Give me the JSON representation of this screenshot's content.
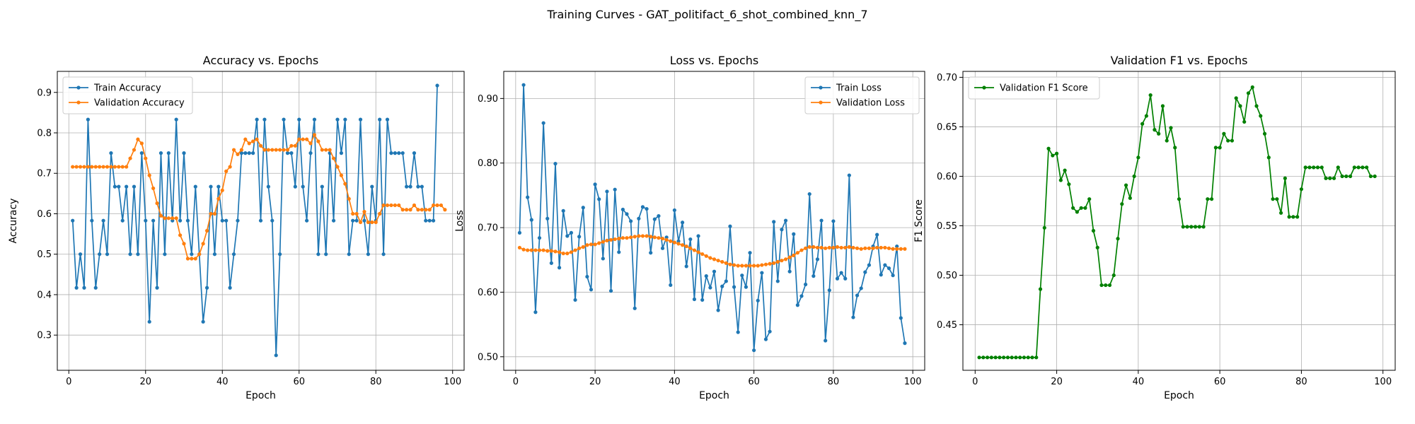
{
  "suptitle": "Training Curves - GAT_politifact_6_shot_combined_knn_7",
  "colors": {
    "train": "#1f77b4",
    "validation": "#ff7f0e",
    "f1": "#008000"
  },
  "chart_data": [
    {
      "type": "line",
      "title": "Accuracy vs. Epochs",
      "xlabel": "Epoch",
      "ylabel": "Accuracy",
      "xlim": [
        -3,
        103
      ],
      "ylim": [
        0.213,
        0.952
      ],
      "xticks": [
        0,
        20,
        40,
        60,
        80,
        100
      ],
      "yticks": [
        0.3,
        0.4,
        0.5,
        0.6,
        0.7,
        0.8,
        0.9
      ],
      "grid": true,
      "legend": "upper left",
      "x_start": 1,
      "series": [
        {
          "name": "Train Accuracy",
          "color": "#1f77b4",
          "values": [
            0.583,
            0.417,
            0.5,
            0.417,
            0.833,
            0.583,
            0.417,
            0.5,
            0.583,
            0.5,
            0.75,
            0.667,
            0.667,
            0.583,
            0.667,
            0.5,
            0.667,
            0.5,
            0.75,
            0.583,
            0.333,
            0.583,
            0.417,
            0.75,
            0.5,
            0.75,
            0.583,
            0.833,
            0.583,
            0.75,
            0.583,
            0.5,
            0.667,
            0.5,
            0.333,
            0.417,
            0.667,
            0.5,
            0.667,
            0.583,
            0.583,
            0.417,
            0.5,
            0.583,
            0.75,
            0.75,
            0.75,
            0.75,
            0.833,
            0.583,
            0.833,
            0.667,
            0.583,
            0.25,
            0.5,
            0.833,
            0.75,
            0.75,
            0.667,
            0.833,
            0.667,
            0.583,
            0.75,
            0.833,
            0.5,
            0.667,
            0.5,
            0.75,
            0.583,
            0.833,
            0.75,
            0.833,
            0.5,
            0.583,
            0.583,
            0.833,
            0.583,
            0.5,
            0.667,
            0.583,
            0.833,
            0.5,
            0.833,
            0.75,
            0.75,
            0.75,
            0.75,
            0.667,
            0.667,
            0.75,
            0.667,
            0.667,
            0.583,
            0.583,
            0.583,
            0.917
          ]
        },
        {
          "name": "Validation Accuracy",
          "color": "#ff7f0e",
          "values": [
            0.716,
            0.716,
            0.716,
            0.716,
            0.716,
            0.716,
            0.716,
            0.716,
            0.716,
            0.716,
            0.716,
            0.716,
            0.716,
            0.716,
            0.716,
            0.737,
            0.758,
            0.784,
            0.774,
            0.737,
            0.695,
            0.663,
            0.626,
            0.595,
            0.589,
            0.589,
            0.589,
            0.589,
            0.547,
            0.526,
            0.489,
            0.489,
            0.489,
            0.5,
            0.526,
            0.558,
            0.6,
            0.6,
            0.637,
            0.658,
            0.705,
            0.716,
            0.758,
            0.747,
            0.758,
            0.784,
            0.774,
            0.779,
            0.784,
            0.768,
            0.758,
            0.758,
            0.758,
            0.758,
            0.758,
            0.758,
            0.758,
            0.768,
            0.768,
            0.784,
            0.784,
            0.784,
            0.774,
            0.795,
            0.779,
            0.758,
            0.758,
            0.758,
            0.737,
            0.716,
            0.695,
            0.674,
            0.637,
            0.6,
            0.6,
            0.579,
            0.605,
            0.579,
            0.579,
            0.579,
            0.6,
            0.621,
            0.621,
            0.621,
            0.621,
            0.621,
            0.61,
            0.61,
            0.61,
            0.621,
            0.61,
            0.61,
            0.61,
            0.61,
            0.621,
            0.621,
            0.621,
            0.61
          ]
        }
      ]
    },
    {
      "type": "line",
      "title": "Loss vs. Epochs",
      "xlabel": "Epoch",
      "ylabel": "Loss",
      "xlim": [
        -3,
        103
      ],
      "ylim": [
        0.479,
        0.942
      ],
      "xticks": [
        0,
        20,
        40,
        60,
        80,
        100
      ],
      "yticks": [
        0.5,
        0.6,
        0.7,
        0.8,
        0.9
      ],
      "grid": true,
      "legend": "upper right",
      "x_start": 1,
      "series": [
        {
          "name": "Train Loss",
          "color": "#1f77b4",
          "values": [
            0.692,
            0.921,
            0.747,
            0.712,
            0.569,
            0.684,
            0.862,
            0.714,
            0.645,
            0.799,
            0.638,
            0.726,
            0.687,
            0.692,
            0.588,
            0.686,
            0.731,
            0.624,
            0.604,
            0.767,
            0.744,
            0.652,
            0.756,
            0.602,
            0.759,
            0.662,
            0.728,
            0.721,
            0.71,
            0.575,
            0.714,
            0.732,
            0.729,
            0.661,
            0.713,
            0.718,
            0.668,
            0.685,
            0.611,
            0.727,
            0.679,
            0.708,
            0.64,
            0.682,
            0.589,
            0.687,
            0.588,
            0.625,
            0.607,
            0.632,
            0.572,
            0.609,
            0.617,
            0.702,
            0.608,
            0.538,
            0.626,
            0.608,
            0.661,
            0.51,
            0.587,
            0.63,
            0.527,
            0.539,
            0.709,
            0.617,
            0.697,
            0.711,
            0.632,
            0.69,
            0.58,
            0.594,
            0.612,
            0.752,
            0.625,
            0.651,
            0.711,
            0.525,
            0.603,
            0.71,
            0.621,
            0.63,
            0.621,
            0.781,
            0.561,
            0.595,
            0.606,
            0.631,
            0.642,
            0.671,
            0.689,
            0.627,
            0.642,
            0.637,
            0.626,
            0.671,
            0.56,
            0.521
          ]
        },
        {
          "name": "Validation Loss",
          "color": "#ff7f0e",
          "values": [
            0.669,
            0.666,
            0.665,
            0.665,
            0.665,
            0.665,
            0.665,
            0.664,
            0.664,
            0.663,
            0.662,
            0.66,
            0.66,
            0.662,
            0.665,
            0.668,
            0.67,
            0.673,
            0.674,
            0.674,
            0.676,
            0.678,
            0.68,
            0.681,
            0.682,
            0.683,
            0.684,
            0.684,
            0.685,
            0.686,
            0.687,
            0.687,
            0.687,
            0.686,
            0.685,
            0.684,
            0.683,
            0.681,
            0.679,
            0.677,
            0.675,
            0.673,
            0.671,
            0.668,
            0.665,
            0.662,
            0.659,
            0.656,
            0.653,
            0.651,
            0.649,
            0.647,
            0.645,
            0.643,
            0.642,
            0.641,
            0.641,
            0.641,
            0.641,
            0.641,
            0.641,
            0.642,
            0.643,
            0.644,
            0.645,
            0.647,
            0.649,
            0.651,
            0.654,
            0.657,
            0.661,
            0.665,
            0.668,
            0.67,
            0.67,
            0.669,
            0.669,
            0.668,
            0.669,
            0.669,
            0.67,
            0.669,
            0.669,
            0.67,
            0.669,
            0.668,
            0.667,
            0.668,
            0.668,
            0.668,
            0.669,
            0.669,
            0.669,
            0.668,
            0.667,
            0.667,
            0.667,
            0.667
          ]
        }
      ]
    },
    {
      "type": "line",
      "title": "Validation F1 vs. Epochs",
      "xlabel": "Epoch",
      "ylabel": "F1 Score",
      "xlim": [
        -3,
        103
      ],
      "ylim": [
        0.404,
        0.706
      ],
      "xticks": [
        0,
        20,
        40,
        60,
        80,
        100
      ],
      "yticks": [
        0.45,
        0.5,
        0.55,
        0.6,
        0.65,
        0.7
      ],
      "grid": true,
      "legend": "upper left",
      "x_start": 1,
      "series": [
        {
          "name": "Validation F1 Score",
          "color": "#008000",
          "values": [
            0.417,
            0.417,
            0.417,
            0.417,
            0.417,
            0.417,
            0.417,
            0.417,
            0.417,
            0.417,
            0.417,
            0.417,
            0.417,
            0.417,
            0.417,
            0.486,
            0.548,
            0.628,
            0.621,
            0.623,
            0.596,
            0.606,
            0.592,
            0.568,
            0.564,
            0.568,
            0.568,
            0.577,
            0.545,
            0.528,
            0.49,
            0.49,
            0.49,
            0.5,
            0.537,
            0.572,
            0.591,
            0.578,
            0.6,
            0.619,
            0.653,
            0.661,
            0.682,
            0.647,
            0.643,
            0.671,
            0.636,
            0.649,
            0.629,
            0.577,
            0.549,
            0.549,
            0.549,
            0.549,
            0.549,
            0.549,
            0.577,
            0.577,
            0.629,
            0.629,
            0.643,
            0.636,
            0.636,
            0.679,
            0.671,
            0.655,
            0.684,
            0.69,
            0.671,
            0.661,
            0.643,
            0.619,
            0.577,
            0.577,
            0.563,
            0.598,
            0.559,
            0.559,
            0.559,
            0.587,
            0.609,
            0.609,
            0.609,
            0.609,
            0.609,
            0.598,
            0.598,
            0.598,
            0.609,
            0.6,
            0.6,
            0.6,
            0.609,
            0.609,
            0.609,
            0.609,
            0.6,
            0.6
          ]
        }
      ]
    }
  ]
}
